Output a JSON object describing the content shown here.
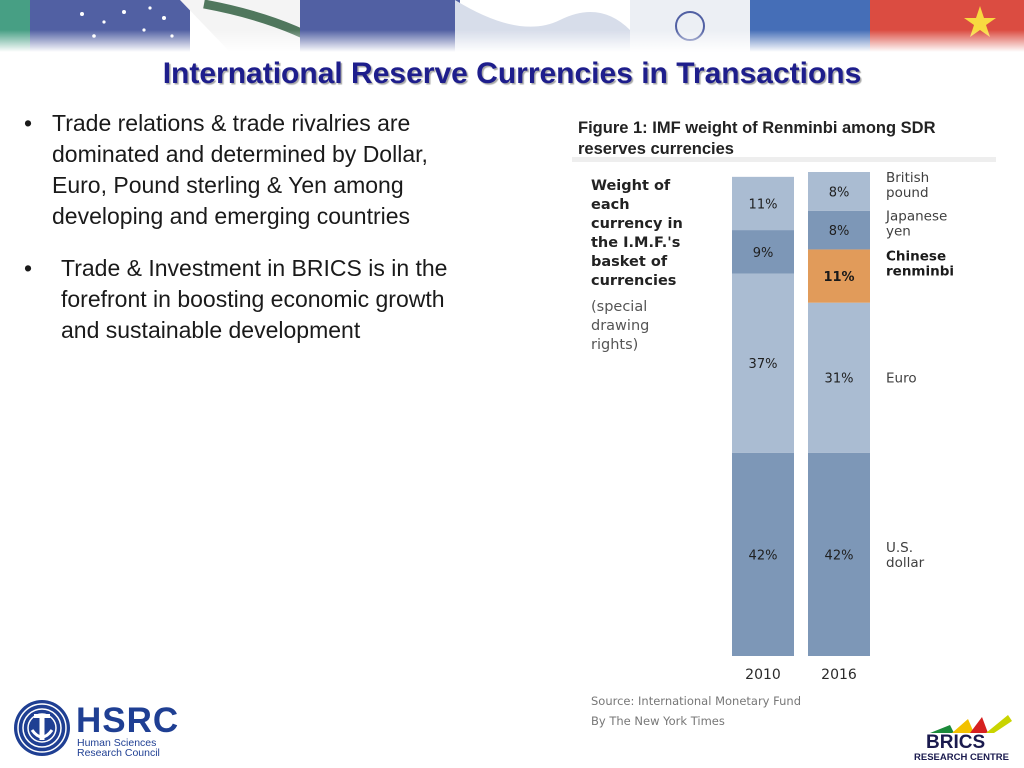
{
  "slide": {
    "title": "International Reserve Currencies in Transactions",
    "bullets": [
      {
        "marker": "•",
        "text": "Trade relations & trade rivalries are dominated and determined by Dollar, Euro, Pound sterling & Yen among developing and emerging countries"
      },
      {
        "marker": "•",
        "text": "Trade & Investment in BRICS is in the forefront in boosting economic growth and sustainable development"
      }
    ],
    "figure_caption": [
      "Figure 1: IMF weight of Renminbi among SDR",
      "reserves currencies"
    ]
  },
  "logos": {
    "hsrc_name": "HSRC",
    "hsrc_subtitle": [
      "Human Sciences",
      "Research Council"
    ],
    "brics_name": "BRICS",
    "brics_subtitle": "RESEARCH CENTRE"
  },
  "chart_data": {
    "type": "bar",
    "stacked": true,
    "y_unit": "%",
    "ylim": [
      0,
      100
    ],
    "side_title": [
      "Weight of",
      "each",
      "currency in",
      "the I.M.F.'s",
      "basket of",
      "currencies"
    ],
    "side_subtitle": [
      "(special",
      "drawing",
      "rights)"
    ],
    "categories": [
      "2010",
      "2016"
    ],
    "series": [
      {
        "name": [
          "U.S.",
          "dollar"
        ],
        "values": [
          42,
          42
        ],
        "labels": [
          "42%",
          "42%"
        ],
        "color": "#7d97b7",
        "bold": false
      },
      {
        "name": [
          "Euro"
        ],
        "values": [
          37,
          31
        ],
        "labels": [
          "37%",
          "31%"
        ],
        "color": "#aabcd2",
        "bold": false
      },
      {
        "name": [
          "Chinese",
          "renminbi"
        ],
        "values": [
          0,
          11
        ],
        "labels": [
          "",
          "11%"
        ],
        "color": "#e19b5a",
        "bold": true
      },
      {
        "name": [
          "Japanese",
          "yen"
        ],
        "values": [
          9,
          8
        ],
        "labels": [
          "9%",
          "8%"
        ],
        "color": "#7d97b7",
        "bold": false
      },
      {
        "name": [
          "British",
          "pound"
        ],
        "values": [
          11,
          8
        ],
        "labels": [
          "11%",
          "8%"
        ],
        "color": "#aabcd2",
        "bold": false
      }
    ],
    "source": [
      "Source: International Monetary Fund",
      "By The New York Times"
    ]
  }
}
